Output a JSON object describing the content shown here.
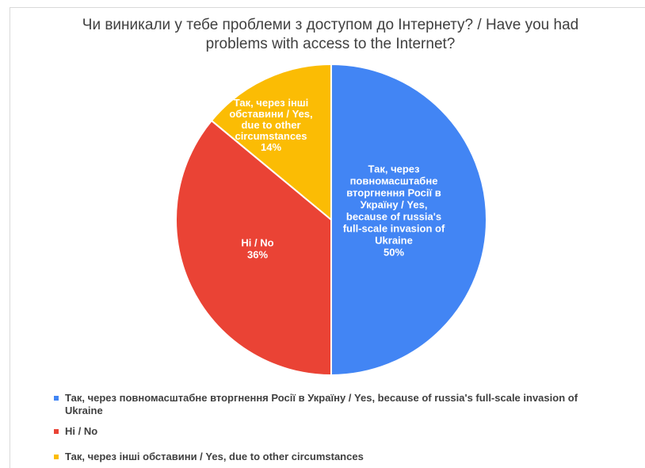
{
  "chart_data": {
    "type": "pie",
    "title_line1": "Чи виникали у тебе проблеми з доступом до Інтернету? / Have you had",
    "title_line2": "problems with access to the Internet?",
    "slices": [
      {
        "label": "Так, через повномасштабне вторгнення Росії в Україну / Yes, because of russia's full-scale invasion of Ukraine",
        "label_lines": [
          "Так, через",
          "повномасштабне",
          "вторгнення Росії в",
          "Україну / Yes,",
          "because of russia's",
          "full-scale invasion of",
          "Ukraine"
        ],
        "value": 50,
        "percent": "50%",
        "color": "#4285f4"
      },
      {
        "label": "Ні / No",
        "label_lines": [
          "Ні / No"
        ],
        "value": 36,
        "percent": "36%",
        "color": "#ea4335"
      },
      {
        "label": "Так, через інші обставини / Yes, due to other circumstances",
        "label_lines": [
          "Так, через інші",
          "обставини / Yes,",
          "due to other",
          "circumstances"
        ],
        "value": 14,
        "percent": "14%",
        "color": "#fbbc04"
      }
    ],
    "legend": [
      {
        "line1": "Так, через повномасштабне вторгнення Росії в Україну / Yes, because of russia's full-scale invasion of",
        "line2": "Ukraine"
      },
      {
        "line1": "Ні / No",
        "line2": ""
      },
      {
        "line1": "Так, через інші обставини / Yes, due to other circumstances",
        "line2": ""
      }
    ],
    "legend_position": "bottom"
  }
}
